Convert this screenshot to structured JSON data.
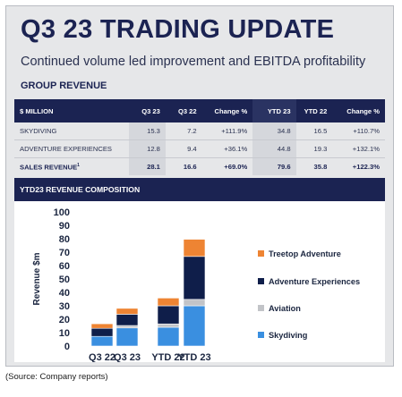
{
  "header": {
    "title": "Q3 23 TRADING UPDATE",
    "subtitle": "Continued volume led improvement and EBITDA profitability",
    "section_label": "GROUP REVENUE"
  },
  "table": {
    "columns": [
      "$ MILLION",
      "Q3 23",
      "Q3 22",
      "Change %",
      "YTD 23",
      "YTD 22",
      "Change %"
    ],
    "rows": [
      [
        "SKYDIVING",
        "15.3",
        "7.2",
        "+111.9%",
        "34.8",
        "16.5",
        "+110.7%"
      ],
      [
        "ADVENTURE EXPERIENCES",
        "12.8",
        "9.4",
        "+36.1%",
        "44.8",
        "19.3",
        "+132.1%"
      ],
      [
        "SALES REVENUE",
        "28.1",
        "16.6",
        "+69.0%",
        "79.6",
        "35.8",
        "+122.3%"
      ]
    ],
    "total_footnote": "1"
  },
  "chart_section_label": "YTD23 REVENUE COMPOSITION",
  "source_note": "(Source: Company reports)",
  "colors": {
    "navy": "#1b2352",
    "treetop": "#ee8433",
    "adventure": "#0f1e4a",
    "aviation": "#c2c4c8",
    "skydiving": "#3a8fe0"
  },
  "chart_data": {
    "type": "bar",
    "stacked": true,
    "categories": [
      "Q3 22",
      "Q3 23",
      "YTD 22",
      "YTD 23"
    ],
    "series": [
      {
        "name": "Skydiving",
        "values": [
          7.2,
          13.5,
          14.0,
          30.0
        ]
      },
      {
        "name": "Aviation",
        "values": [
          0.0,
          1.8,
          2.5,
          4.8
        ]
      },
      {
        "name": "Adventure Experiences",
        "values": [
          6.0,
          8.4,
          13.5,
          32.0
        ]
      },
      {
        "name": "Treetop Adventure",
        "values": [
          3.4,
          4.4,
          5.8,
          12.8
        ]
      }
    ],
    "legend_order": [
      "Treetop Adventure",
      "Adventure Experiences",
      "Aviation",
      "Skydiving"
    ],
    "xlabel": "",
    "ylabel": "Revenue $m",
    "ylim": [
      0,
      100
    ],
    "yticks": [
      0,
      10,
      20,
      30,
      40,
      50,
      60,
      70,
      80,
      90,
      100
    ],
    "grid": false,
    "legend_position": "right"
  }
}
